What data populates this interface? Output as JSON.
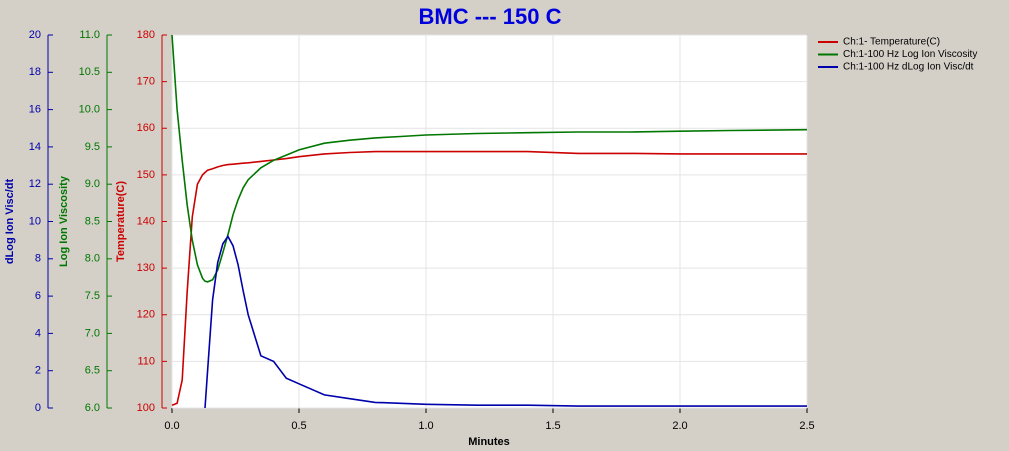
{
  "chart_data": {
    "type": "line",
    "title": "BMC --- 150 C",
    "x_label": "Minutes",
    "y_label": "Temperature(C)",
    "y2_label": "Log Ion Viscosity",
    "y3_label": "dLog Ion Visc/dt",
    "x": [
      0,
      0.02,
      0.04,
      0.06,
      0.08,
      0.1,
      0.12,
      0.13,
      0.14,
      0.16,
      0.18,
      0.2,
      0.22,
      0.24,
      0.26,
      0.28,
      0.3,
      0.35,
      0.4,
      0.45,
      0.5,
      0.6,
      0.7,
      0.8,
      0.9,
      1.0,
      1.2,
      1.4,
      1.6,
      1.8,
      2.0,
      2.2,
      2.5
    ],
    "xlim": [
      0,
      2.5
    ],
    "xticks": [
      {
        "value": 0,
        "label": "0.0"
      },
      0.5,
      {
        "value": 1,
        "label": "1.0"
      },
      1.5,
      {
        "value": 2,
        "label": "2.0"
      },
      2.5
    ],
    "ylim": [
      100,
      180
    ],
    "yticks": [
      100,
      110,
      120,
      130,
      140,
      150,
      160,
      170,
      180
    ],
    "y2lim": [
      6,
      11
    ],
    "y2ticks": [
      {
        "value": 6,
        "label": "6.0"
      },
      6.5,
      {
        "value": 7,
        "label": "7.0"
      },
      7.5,
      {
        "value": 8,
        "label": "8.0"
      },
      8.5,
      {
        "value": 9,
        "label": "9.0"
      },
      9.5,
      {
        "value": 10,
        "label": "10.0"
      },
      10.5,
      {
        "value": 11,
        "label": "11.0"
      }
    ],
    "y3lim": [
      0,
      20
    ],
    "y3ticks": [
      0,
      2,
      4,
      6,
      8,
      10,
      12,
      14,
      16,
      18,
      20
    ],
    "grid": true,
    "legend": "right",
    "series": [
      {
        "name": "Ch:1- Temperature(C)",
        "color": "#cc0000",
        "axis": "y",
        "values": [
          100.6,
          101,
          106,
          125,
          141,
          148,
          150,
          150.5,
          151,
          151.3,
          151.7,
          152,
          152.2,
          152.3,
          152.4,
          152.5,
          152.6,
          152.9,
          153.2,
          153.5,
          153.9,
          154.5,
          154.8,
          155,
          155,
          155,
          155,
          155,
          154.6,
          154.6,
          154.5,
          154.5,
          154.5
        ]
      },
      {
        "name": "Ch:1-100 Hz Log Ion Viscosity",
        "color": "#007700",
        "axis": "y2",
        "values": [
          11.0,
          10.0,
          9.32,
          8.72,
          8.25,
          7.92,
          7.74,
          7.7,
          7.69,
          7.72,
          7.85,
          8.08,
          8.32,
          8.59,
          8.79,
          8.95,
          9.06,
          9.22,
          9.32,
          9.39,
          9.46,
          9.55,
          9.59,
          9.62,
          9.64,
          9.66,
          9.68,
          9.69,
          9.7,
          9.7,
          9.71,
          9.72,
          9.73
        ]
      },
      {
        "name": "Ch:1-100 Hz dLog Ion Visc/dt",
        "color": "#0000aa",
        "axis": "y3",
        "values": [
          null,
          null,
          null,
          null,
          null,
          null,
          null,
          0,
          2.0,
          5.8,
          7.8,
          8.8,
          9.2,
          8.7,
          7.7,
          6.3,
          5.0,
          2.8,
          2.5,
          1.6,
          1.3,
          0.7,
          0.5,
          0.3,
          0.25,
          0.2,
          0.15,
          0.15,
          0.1,
          0.1,
          0.1,
          0.1,
          0.1
        ]
      }
    ]
  }
}
